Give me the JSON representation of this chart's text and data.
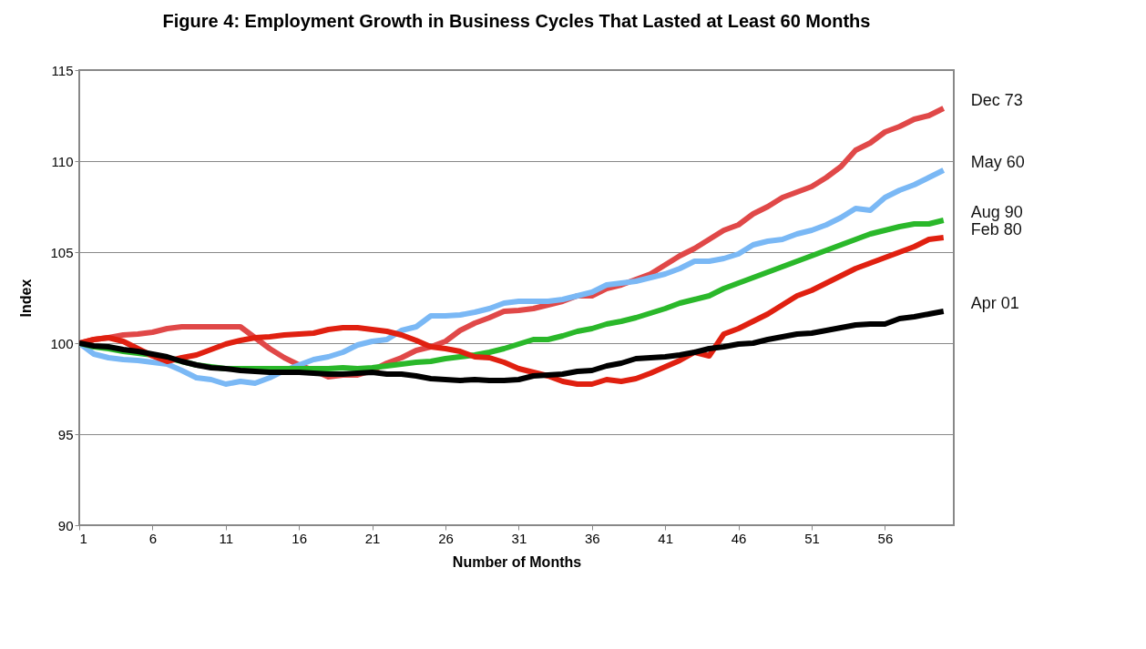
{
  "chart_data": {
    "type": "line",
    "title": "Figure 4: Employment Growth in Business Cycles That Lasted at Least 60 Months",
    "xlabel": "Number of Months",
    "ylabel": "Index",
    "x": [
      1,
      2,
      3,
      4,
      5,
      6,
      7,
      8,
      9,
      10,
      11,
      12,
      13,
      14,
      15,
      16,
      17,
      18,
      19,
      20,
      21,
      22,
      23,
      24,
      25,
      26,
      27,
      28,
      29,
      30,
      31,
      32,
      33,
      34,
      35,
      36,
      37,
      38,
      39,
      40,
      41,
      42,
      43,
      44,
      45,
      46,
      47,
      48,
      49,
      50,
      51,
      52,
      53,
      54,
      55,
      56,
      57,
      58,
      59,
      60
    ],
    "xlim": [
      1,
      60.7
    ],
    "xticks": [
      1,
      6,
      11,
      16,
      21,
      26,
      31,
      36,
      41,
      46,
      51,
      56
    ],
    "ylim": [
      90,
      115
    ],
    "yticks": [
      90,
      95,
      100,
      105,
      110,
      115
    ],
    "grid": "y",
    "line_style": "solid",
    "series": [
      {
        "name": "Dec 73",
        "color": "#e04848",
        "values": [
          100,
          100.2,
          100.3,
          100.45,
          100.5,
          100.6,
          100.8,
          100.9,
          100.9,
          100.9,
          100.9,
          100.9,
          100.3,
          99.7,
          99.2,
          98.8,
          98.5,
          98.15,
          98.25,
          98.25,
          98.5,
          98.9,
          99.2,
          99.6,
          99.8,
          100.1,
          100.7,
          101.1,
          101.4,
          101.75,
          101.8,
          101.9,
          102.1,
          102.3,
          102.6,
          102.6,
          103,
          103.2,
          103.5,
          103.8,
          104.3,
          104.8,
          105.2,
          105.7,
          106.2,
          106.5,
          107.1,
          107.5,
          108,
          108.3,
          108.6,
          109.1,
          109.7,
          110.6,
          111,
          111.6,
          111.9,
          112.3,
          112.5,
          112.9
        ]
      },
      {
        "name": "May 60",
        "color": "#7ab8f5",
        "values": [
          100,
          99.4,
          99.2,
          99.1,
          99.05,
          98.95,
          98.85,
          98.5,
          98.1,
          98,
          97.75,
          97.9,
          97.8,
          98.1,
          98.5,
          98.8,
          99.1,
          99.25,
          99.5,
          99.9,
          100.1,
          100.2,
          100.7,
          100.9,
          101.5,
          101.5,
          101.55,
          101.7,
          101.9,
          102.2,
          102.3,
          102.3,
          102.3,
          102.4,
          102.6,
          102.8,
          103.2,
          103.3,
          103.4,
          103.6,
          103.8,
          104.1,
          104.5,
          104.5,
          104.65,
          104.9,
          105.4,
          105.6,
          105.7,
          106,
          106.2,
          106.5,
          106.9,
          107.4,
          107.3,
          108,
          108.4,
          108.7,
          109.1,
          109.5
        ]
      },
      {
        "name": "Aug 90",
        "color": "#2ab82a",
        "values": [
          100,
          99.8,
          99.7,
          99.55,
          99.45,
          99.35,
          99.2,
          99,
          98.8,
          98.7,
          98.6,
          98.6,
          98.6,
          98.6,
          98.6,
          98.6,
          98.6,
          98.6,
          98.65,
          98.6,
          98.65,
          98.75,
          98.85,
          98.95,
          99,
          99.15,
          99.25,
          99.35,
          99.5,
          99.7,
          99.95,
          100.2,
          100.2,
          100.4,
          100.65,
          100.8,
          101.05,
          101.2,
          101.4,
          101.65,
          101.9,
          102.2,
          102.4,
          102.6,
          103,
          103.3,
          103.6,
          103.9,
          104.2,
          104.5,
          104.8,
          105.1,
          105.4,
          105.7,
          106,
          106.2,
          106.4,
          106.55,
          106.55,
          106.75
        ]
      },
      {
        "name": "Feb 80",
        "color": "#e02010",
        "values": [
          100,
          100.2,
          100.3,
          100.1,
          99.7,
          99.3,
          99,
          99.2,
          99.35,
          99.65,
          99.95,
          100.15,
          100.3,
          100.35,
          100.45,
          100.5,
          100.55,
          100.75,
          100.85,
          100.85,
          100.75,
          100.65,
          100.45,
          100.15,
          99.8,
          99.7,
          99.55,
          99.25,
          99.2,
          98.95,
          98.6,
          98.4,
          98.2,
          97.9,
          97.75,
          97.75,
          98,
          97.9,
          98.05,
          98.35,
          98.7,
          99.05,
          99.5,
          99.3,
          100.5,
          100.8,
          101.2,
          101.6,
          102.1,
          102.6,
          102.9,
          103.3,
          103.7,
          104.1,
          104.4,
          104.7,
          105,
          105.3,
          105.7,
          105.8
        ]
      },
      {
        "name": "Apr 01",
        "color": "#000000",
        "values": [
          100,
          99.85,
          99.8,
          99.65,
          99.55,
          99.4,
          99.25,
          99,
          98.8,
          98.65,
          98.6,
          98.5,
          98.45,
          98.4,
          98.4,
          98.4,
          98.35,
          98.3,
          98.3,
          98.35,
          98.4,
          98.3,
          98.3,
          98.2,
          98.05,
          98,
          97.95,
          98,
          97.95,
          97.95,
          98,
          98.2,
          98.25,
          98.3,
          98.45,
          98.5,
          98.75,
          98.9,
          99.15,
          99.2,
          99.25,
          99.35,
          99.5,
          99.7,
          99.8,
          99.95,
          100,
          100.2,
          100.35,
          100.5,
          100.55,
          100.7,
          100.85,
          101,
          101.05,
          101.05,
          101.35,
          101.45,
          101.6,
          101.75
        ]
      }
    ]
  }
}
